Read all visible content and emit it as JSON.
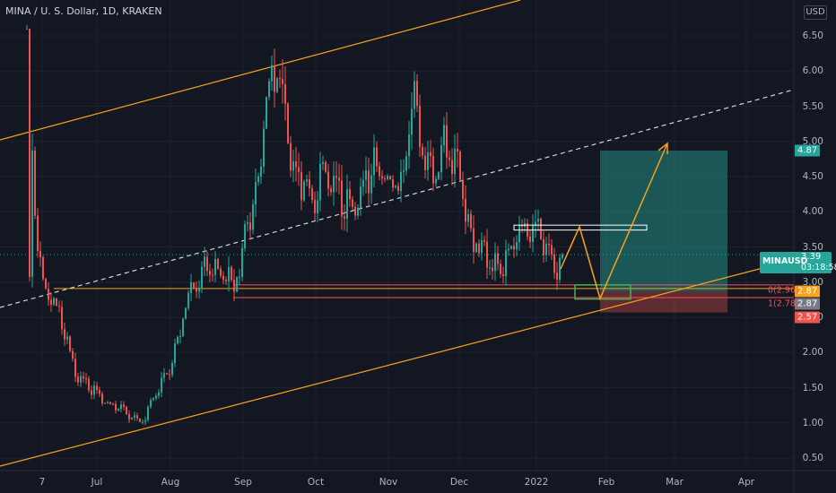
{
  "header": {
    "title": "MINA / U. S. Dollar, 1D, KRAKEN",
    "currency_badge": "USD"
  },
  "price_axis": {
    "labels": [
      "6.50",
      "6.00",
      "5.50",
      "5.00",
      "4.50",
      "4.00",
      "3.50",
      "3.00",
      "2.50",
      "2.00",
      "1.50",
      "1.00",
      "0.50"
    ]
  },
  "time_axis": {
    "labels": [
      "7",
      "Jul",
      "Aug",
      "Sep",
      "Oct",
      "Nov",
      "Dec",
      "2022",
      "Feb",
      "Mar",
      "Apr"
    ]
  },
  "price_tags": {
    "symbol": "MINAUSD",
    "last_price": "3.39",
    "countdown": "03:18:58",
    "target": "4.87",
    "entry_top": "2.87",
    "entry_bottom": "2.87",
    "stop": "2.57"
  },
  "fib_labels": {
    "level0": "0(2.96)",
    "level1": "1(2.78)"
  },
  "colors": {
    "background": "#131722",
    "up": "#26a69a",
    "down": "#ef5350",
    "channel": "#f7a21b",
    "target_zone": "#26a69a",
    "stop_zone": "#ef5350"
  },
  "chart_data": {
    "type": "candlestick",
    "y_scale": {
      "min": 0.5,
      "max": 6.5
    },
    "annotations": [
      "ascending channel",
      "midline dashed",
      "fib 0 at 2.96",
      "fib 1 at 2.78",
      "long position target 4.87",
      "stop 2.57",
      "projected path arrow"
    ]
  }
}
